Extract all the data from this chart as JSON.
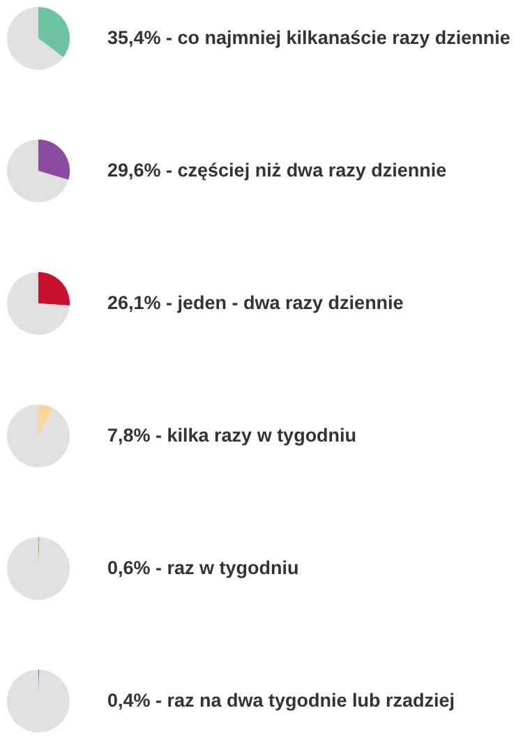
{
  "chart_data": [
    {
      "type": "pie",
      "title": "35,4% - co najmniej kilkanaście razy dziennie",
      "categories": [
        null,
        null
      ],
      "values": [
        35.4,
        64.6
      ],
      "colors": [
        "#6cc3a0",
        "#e0e0e0"
      ]
    },
    {
      "type": "pie",
      "title": "29,6% - częściej niż dwa razy dziennie",
      "categories": [
        null,
        null
      ],
      "values": [
        29.6,
        70.4
      ],
      "colors": [
        "#8a4a9e",
        "#e0e0e0"
      ]
    },
    {
      "type": "pie",
      "title": "26,1% - jeden - dwa razy dziennie",
      "categories": [
        null,
        null
      ],
      "values": [
        26.1,
        73.9
      ],
      "colors": [
        "#c8102e",
        "#e0e0e0"
      ]
    },
    {
      "type": "pie",
      "title": "7,8% - kilka razy w tygodniu",
      "categories": [
        null,
        null
      ],
      "values": [
        7.8,
        92.2
      ],
      "colors": [
        "#f9d49b",
        "#e0e0e0"
      ]
    },
    {
      "type": "pie",
      "title": "0,6% - raz w tygodniu",
      "categories": [
        null,
        null
      ],
      "values": [
        0.6,
        99.4
      ],
      "colors": [
        "#7ab648",
        "#e0e0e0"
      ]
    },
    {
      "type": "pie",
      "title": "0,4% - raz na dwa tygodnie lub rzadziej",
      "categories": [
        null,
        null
      ],
      "values": [
        0.4,
        99.6
      ],
      "colors": [
        "#4a6fb5",
        "#e0e0e0"
      ]
    }
  ]
}
